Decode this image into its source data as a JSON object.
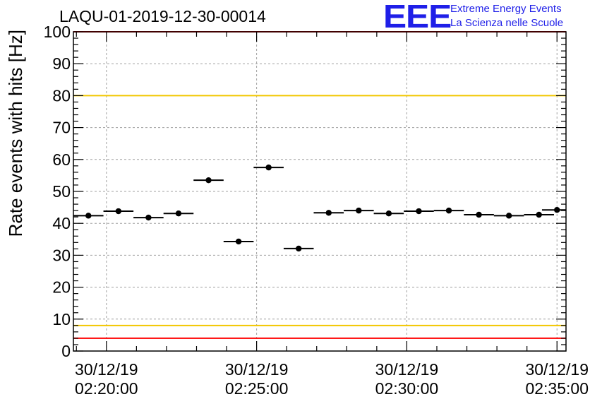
{
  "title": "LAQU-01-2019-12-30-00014",
  "logo": {
    "mark": "EEE",
    "line1": "Extreme Energy Events",
    "line2": "La Scienza nelle Scuole"
  },
  "colors": {
    "axis": "#000000",
    "grid": "#a0a0a0",
    "limit_red": "#ff0000",
    "limit_yellow": "#f2c700",
    "marker": "#000000",
    "logo_blue": "#1f1fe8"
  },
  "chart_data": {
    "type": "scatter",
    "title": "LAQU-01-2019-12-30-00014",
    "ylabel": "Rate events with hits [Hz]",
    "xlabel": "",
    "ylim": [
      0,
      100
    ],
    "yticks": [
      0,
      10,
      20,
      30,
      40,
      50,
      60,
      70,
      80,
      90,
      100
    ],
    "xlim_minutes": [
      -1.1,
      15.3
    ],
    "xticks": [
      {
        "minute": 0,
        "date": "30/12/19",
        "time": "02:20:00"
      },
      {
        "minute": 5,
        "date": "30/12/19",
        "time": "02:25:00"
      },
      {
        "minute": 10,
        "date": "30/12/19",
        "time": "02:30:00"
      },
      {
        "minute": 15,
        "date": "30/12/19",
        "time": "02:35:00"
      }
    ],
    "bin_width_minutes": 1.0,
    "grid": true,
    "series": [
      {
        "name": "rate",
        "x_minutes": [
          -0.6,
          0.4,
          1.4,
          2.4,
          3.4,
          4.4,
          5.4,
          6.4,
          7.4,
          8.4,
          9.4,
          10.4,
          11.4,
          12.4,
          13.4,
          14.4,
          15.0
        ],
        "values": [
          42.4,
          43.8,
          41.8,
          43.1,
          53.5,
          34.3,
          57.5,
          32.1,
          43.3,
          44.0,
          43.1,
          43.8,
          44.0,
          42.7,
          42.4,
          42.7,
          44.2
        ]
      }
    ],
    "reference_lines": [
      {
        "value": 100,
        "color": "red"
      },
      {
        "value": 80,
        "color": "yellow"
      },
      {
        "value": 8,
        "color": "yellow"
      },
      {
        "value": 4,
        "color": "red"
      }
    ]
  }
}
